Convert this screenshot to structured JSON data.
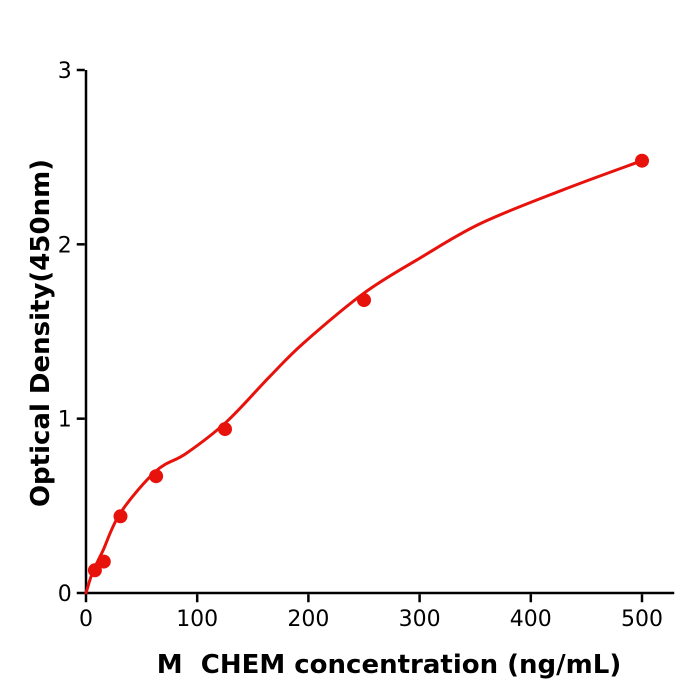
{
  "chart_data": {
    "type": "scatter",
    "title": "",
    "xlabel": "M  CHEM concentration (ng/mL)",
    "ylabel": "Optical Density(450nm)",
    "x_ticks": [
      0,
      100,
      200,
      300,
      400,
      500
    ],
    "y_ticks": [
      0,
      1,
      2,
      3
    ],
    "xlim": [
      0,
      529
    ],
    "ylim": [
      0,
      3
    ],
    "grid": false,
    "legend_position": "none",
    "colors": {
      "accent": "#e8120c",
      "axis": "#000000",
      "background": "#ffffff"
    },
    "series": [
      {
        "name": "standard-points",
        "type": "scatter",
        "color": "#e8120c",
        "points": [
          {
            "x": 8,
            "y": 0.13
          },
          {
            "x": 16,
            "y": 0.18
          },
          {
            "x": 31,
            "y": 0.44
          },
          {
            "x": 63,
            "y": 0.67
          },
          {
            "x": 125,
            "y": 0.94
          },
          {
            "x": 250,
            "y": 1.68
          },
          {
            "x": 500,
            "y": 2.48
          }
        ]
      },
      {
        "name": "fitted-curve",
        "type": "line",
        "color": "#e8120c",
        "points": [
          {
            "x": 0,
            "y": 0.0
          },
          {
            "x": 6,
            "y": 0.12
          },
          {
            "x": 15,
            "y": 0.24
          },
          {
            "x": 31,
            "y": 0.46
          },
          {
            "x": 63,
            "y": 0.7
          },
          {
            "x": 90,
            "y": 0.8
          },
          {
            "x": 126,
            "y": 0.98
          },
          {
            "x": 165,
            "y": 1.24
          },
          {
            "x": 195,
            "y": 1.43
          },
          {
            "x": 250,
            "y": 1.72
          },
          {
            "x": 300,
            "y": 1.92
          },
          {
            "x": 355,
            "y": 2.12
          },
          {
            "x": 428,
            "y": 2.31
          },
          {
            "x": 500,
            "y": 2.48
          }
        ]
      }
    ],
    "style": {
      "point_radius": 7,
      "line_width": 3,
      "spine_width": 2.5,
      "tick_length": 8
    }
  }
}
